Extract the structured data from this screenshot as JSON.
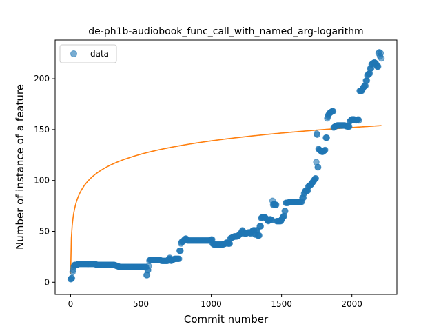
{
  "chart_data": {
    "type": "scatter",
    "title": "de-ph1b-audiobook_func_call_with_named_arg-logarithm",
    "xlabel": "Commit number",
    "ylabel": "Number of instance of a feature",
    "xlim": [
      -110,
      2320
    ],
    "ylim": [
      -12,
      238
    ],
    "xticks": [
      0,
      500,
      1000,
      1500,
      2000
    ],
    "yticks": [
      0,
      50,
      100,
      150,
      200
    ],
    "grid": false,
    "legend": {
      "placement": "top-left",
      "entries": [
        "data"
      ]
    },
    "colors": {
      "data": "#1f77b4",
      "fit": "#ff7f0e"
    },
    "series": [
      {
        "name": "data",
        "kind": "scatter",
        "points": [
          [
            0,
            3
          ],
          [
            3,
            3
          ],
          [
            6,
            4
          ],
          [
            10,
            4
          ],
          [
            14,
            10
          ],
          [
            18,
            12
          ],
          [
            22,
            15
          ],
          [
            28,
            17
          ],
          [
            35,
            17
          ],
          [
            45,
            17
          ],
          [
            55,
            18
          ],
          [
            70,
            18
          ],
          [
            90,
            18
          ],
          [
            110,
            18
          ],
          [
            130,
            18
          ],
          [
            150,
            18
          ],
          [
            170,
            18
          ],
          [
            190,
            17
          ],
          [
            210,
            17
          ],
          [
            230,
            17
          ],
          [
            250,
            17
          ],
          [
            270,
            17
          ],
          [
            290,
            17
          ],
          [
            310,
            17
          ],
          [
            330,
            16
          ],
          [
            350,
            15
          ],
          [
            370,
            15
          ],
          [
            390,
            15
          ],
          [
            410,
            15
          ],
          [
            430,
            15
          ],
          [
            450,
            15
          ],
          [
            470,
            15
          ],
          [
            490,
            15
          ],
          [
            505,
            15
          ],
          [
            520,
            15
          ],
          [
            530,
            15
          ],
          [
            540,
            7
          ],
          [
            548,
            12
          ],
          [
            555,
            16
          ],
          [
            560,
            21
          ],
          [
            565,
            22
          ],
          [
            575,
            22
          ],
          [
            590,
            22
          ],
          [
            610,
            22
          ],
          [
            630,
            22
          ],
          [
            650,
            21
          ],
          [
            670,
            21
          ],
          [
            690,
            21
          ],
          [
            705,
            24
          ],
          [
            715,
            21
          ],
          [
            725,
            22
          ],
          [
            740,
            23
          ],
          [
            760,
            23
          ],
          [
            775,
            31
          ],
          [
            785,
            38
          ],
          [
            792,
            40
          ],
          [
            800,
            40
          ],
          [
            810,
            42
          ],
          [
            820,
            43
          ],
          [
            830,
            41
          ],
          [
            850,
            41
          ],
          [
            870,
            41
          ],
          [
            890,
            41
          ],
          [
            910,
            41
          ],
          [
            930,
            41
          ],
          [
            950,
            41
          ],
          [
            970,
            41
          ],
          [
            990,
            41
          ],
          [
            1000,
            42
          ],
          [
            1010,
            38
          ],
          [
            1020,
            37
          ],
          [
            1030,
            37
          ],
          [
            1045,
            37
          ],
          [
            1060,
            37
          ],
          [
            1080,
            37
          ],
          [
            1100,
            38
          ],
          [
            1110,
            39
          ],
          [
            1120,
            38
          ],
          [
            1135,
            43
          ],
          [
            1150,
            44
          ],
          [
            1165,
            45
          ],
          [
            1180,
            45
          ],
          [
            1195,
            46
          ],
          [
            1210,
            48
          ],
          [
            1222,
            51
          ],
          [
            1235,
            48
          ],
          [
            1250,
            48
          ],
          [
            1265,
            49
          ],
          [
            1280,
            48
          ],
          [
            1290,
            50
          ],
          [
            1300,
            51
          ],
          [
            1310,
            47
          ],
          [
            1320,
            51
          ],
          [
            1330,
            46
          ],
          [
            1345,
            55
          ],
          [
            1355,
            63
          ],
          [
            1365,
            64
          ],
          [
            1380,
            64
          ],
          [
            1395,
            62
          ],
          [
            1405,
            60
          ],
          [
            1420,
            62
          ],
          [
            1428,
            61
          ],
          [
            1436,
            80
          ],
          [
            1440,
            76
          ],
          [
            1448,
            77
          ],
          [
            1455,
            76
          ],
          [
            1465,
            60
          ],
          [
            1480,
            60
          ],
          [
            1495,
            60
          ],
          [
            1505,
            63
          ],
          [
            1515,
            65
          ],
          [
            1522,
            70
          ],
          [
            1530,
            78
          ],
          [
            1545,
            78
          ],
          [
            1560,
            79
          ],
          [
            1580,
            79
          ],
          [
            1600,
            79
          ],
          [
            1620,
            79
          ],
          [
            1640,
            79
          ],
          [
            1648,
            83
          ],
          [
            1660,
            87
          ],
          [
            1670,
            90
          ],
          [
            1680,
            90
          ],
          [
            1690,
            94
          ],
          [
            1700,
            95
          ],
          [
            1710,
            96
          ],
          [
            1720,
            98
          ],
          [
            1730,
            100
          ],
          [
            1740,
            102
          ],
          [
            1747,
            118
          ],
          [
            1750,
            146
          ],
          [
            1753,
            145
          ],
          [
            1757,
            113
          ],
          [
            1763,
            131
          ],
          [
            1770,
            130
          ],
          [
            1780,
            129
          ],
          [
            1790,
            128
          ],
          [
            1800,
            129
          ],
          [
            1810,
            130
          ],
          [
            1815,
            142
          ],
          [
            1825,
            161
          ],
          [
            1832,
            164
          ],
          [
            1840,
            166
          ],
          [
            1850,
            167
          ],
          [
            1860,
            168
          ],
          [
            1870,
            152
          ],
          [
            1880,
            153
          ],
          [
            1895,
            154
          ],
          [
            1910,
            154
          ],
          [
            1930,
            154
          ],
          [
            1950,
            154
          ],
          [
            1970,
            153
          ],
          [
            1985,
            158
          ],
          [
            2000,
            160
          ],
          [
            2015,
            160
          ],
          [
            2030,
            159
          ],
          [
            2045,
            160
          ],
          [
            2050,
            159
          ],
          [
            2055,
            188
          ],
          [
            2070,
            188
          ],
          [
            2080,
            191
          ],
          [
            2090,
            193
          ],
          [
            2100,
            198
          ],
          [
            2110,
            203
          ],
          [
            2120,
            205
          ],
          [
            2130,
            210
          ],
          [
            2140,
            214
          ],
          [
            2150,
            215
          ],
          [
            2160,
            216
          ],
          [
            2170,
            215
          ],
          [
            2180,
            212
          ],
          [
            2190,
            225
          ],
          [
            2195,
            226
          ],
          [
            2200,
            222
          ],
          [
            2205,
            225
          ],
          [
            2210,
            220
          ]
        ]
      },
      {
        "kind": "line",
        "fit": {
          "model": "logarithm",
          "a": 8.13,
          "b": 18.93
        },
        "x_range": [
          0,
          2210
        ]
      }
    ]
  }
}
